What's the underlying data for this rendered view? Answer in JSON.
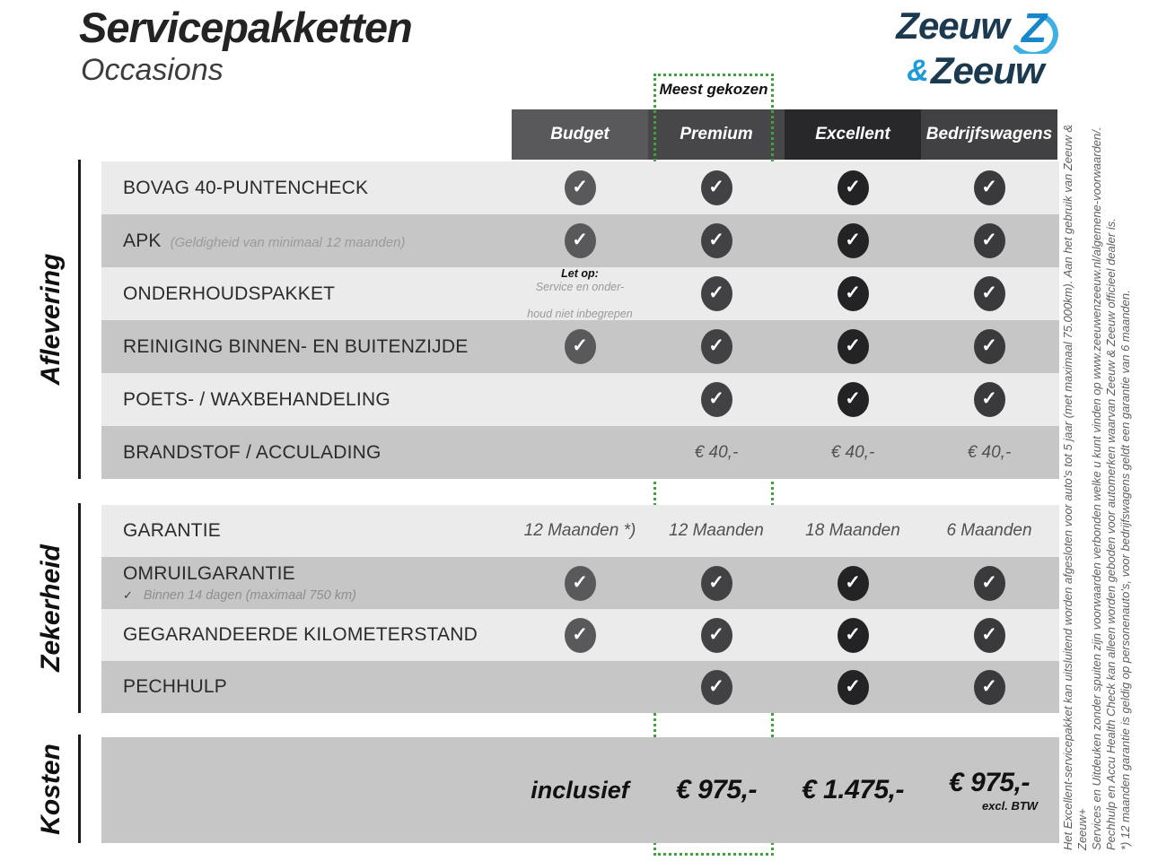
{
  "page": {
    "title": "Servicepakketten",
    "subtitle": "Occasions"
  },
  "logo": {
    "word1": "Zeeuw",
    "ampersand": "&",
    "word2": "Zeeuw"
  },
  "table": {
    "most_chosen_badge": "Meest gekozen",
    "columns": [
      {
        "id": "budget",
        "label": "Budget"
      },
      {
        "id": "premium",
        "label": "Premium",
        "highlighted": true
      },
      {
        "id": "excellent",
        "label": "Excellent"
      },
      {
        "id": "bedrijfswagens",
        "label": "Bedrijfswagens"
      }
    ],
    "sections": [
      {
        "name": "Aflevering",
        "rows": [
          {
            "label": "BOVAG 40-PUNTENCHECK",
            "cells": {
              "budget": {
                "type": "check"
              },
              "premium": {
                "type": "check"
              },
              "excellent": {
                "type": "check"
              },
              "bedrijfswagens": {
                "type": "check"
              }
            }
          },
          {
            "label": "APK",
            "sublabel": "(Geldigheid van minimaal 12 maanden)",
            "cells": {
              "budget": {
                "type": "check"
              },
              "premium": {
                "type": "check"
              },
              "excellent": {
                "type": "check"
              },
              "bedrijfswagens": {
                "type": "check"
              }
            }
          },
          {
            "label": "ONDERHOUDSPAKKET",
            "cells": {
              "budget": {
                "type": "note",
                "bold": "Let op:",
                "line1": "Service en onder-",
                "line2": "houd niet inbegrepen"
              },
              "premium": {
                "type": "check"
              },
              "excellent": {
                "type": "check"
              },
              "bedrijfswagens": {
                "type": "check"
              }
            }
          },
          {
            "label": "REINIGING BINNEN- EN BUITENZIJDE",
            "cells": {
              "budget": {
                "type": "check"
              },
              "premium": {
                "type": "check"
              },
              "excellent": {
                "type": "check"
              },
              "bedrijfswagens": {
                "type": "check"
              }
            }
          },
          {
            "label": "POETS- / WAXBEHANDELING",
            "cells": {
              "budget": {
                "type": "empty"
              },
              "premium": {
                "type": "check"
              },
              "excellent": {
                "type": "check"
              },
              "bedrijfswagens": {
                "type": "check"
              }
            }
          },
          {
            "label": "BRANDSTOF / ACCULADING",
            "cells": {
              "budget": {
                "type": "empty"
              },
              "premium": {
                "type": "text",
                "text": "€ 40,-"
              },
              "excellent": {
                "type": "text",
                "text": "€ 40,-"
              },
              "bedrijfswagens": {
                "type": "text",
                "text": "€ 40,-"
              }
            }
          }
        ]
      },
      {
        "name": "Zekerheid",
        "rows": [
          {
            "label": "GARANTIE",
            "cells": {
              "budget": {
                "type": "text",
                "text": "12 Maanden *)"
              },
              "premium": {
                "type": "text",
                "text": "12 Maanden"
              },
              "excellent": {
                "type": "text",
                "text": "18 Maanden"
              },
              "bedrijfswagens": {
                "type": "text",
                "text": "6 Maanden"
              }
            }
          },
          {
            "label": "OMRUILGARANTIE",
            "subnote": "Binnen 14 dagen (maximaal 750 km)",
            "cells": {
              "budget": {
                "type": "check"
              },
              "premium": {
                "type": "check"
              },
              "excellent": {
                "type": "check"
              },
              "bedrijfswagens": {
                "type": "check"
              }
            }
          },
          {
            "label": "GEGARANDEERDE KILOMETERSTAND",
            "cells": {
              "budget": {
                "type": "check"
              },
              "premium": {
                "type": "check"
              },
              "excellent": {
                "type": "check"
              },
              "bedrijfswagens": {
                "type": "check"
              }
            }
          },
          {
            "label": "PECHHULP",
            "cells": {
              "budget": {
                "type": "empty"
              },
              "premium": {
                "type": "check"
              },
              "excellent": {
                "type": "check"
              },
              "bedrijfswagens": {
                "type": "check"
              }
            }
          }
        ]
      },
      {
        "name": "Kosten",
        "rows": [
          {
            "label": "",
            "cells": {
              "budget": {
                "type": "price",
                "text": "inclusief"
              },
              "premium": {
                "type": "price",
                "text": "€ 975,-"
              },
              "excellent": {
                "type": "price",
                "text": "€ 1.475,-"
              },
              "bedrijfswagens": {
                "type": "price",
                "text": "€ 975,-",
                "sub": "excl. BTW"
              }
            }
          }
        ]
      }
    ]
  },
  "footnotes": [
    "Het Excellent-servicepakket kan uitsluitend worden afgesloten voor auto's tot 5 jaar (met maximaal 75.000km). Aan het gebruik van Zeeuw & Zeeuw+",
    "Services en Uitdeuken zonder spuiten zijn voorwaarden verbonden welke u kunt vinden op www.zeeuwenzeeuw.nl/algemene-voorwaarden/.",
    "Pechhulp en Accu Health Check kan alleen worden geboden voor automerken waarvan Zeeuw & Zeeuw officieel dealer is.",
    "*) 12 maanden garantie is geldig op personenauto's, voor bedrijfswagens geldt een garantie van 6 maanden."
  ],
  "colors": {
    "accent_green": "#3FA33C",
    "brand_navy": "#1B3A50",
    "brand_blue": "#1E9AD6",
    "header_budget": "#59595B",
    "header_premium": "#47474A",
    "header_excellent": "#28282A",
    "header_bedrijfswagens": "#414144",
    "row_light": "#EBEBEB",
    "row_dark": "#C6C6C6"
  }
}
